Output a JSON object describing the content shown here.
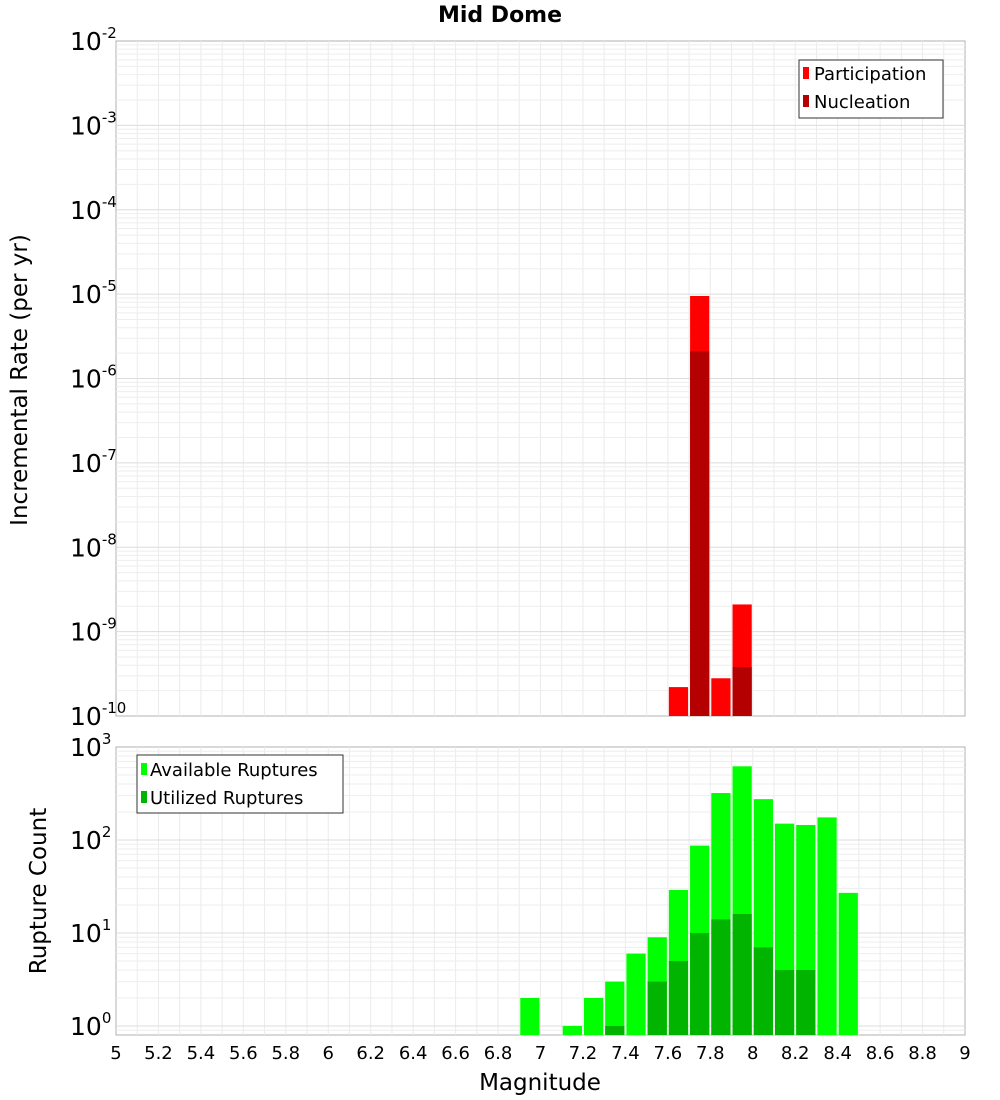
{
  "title": "Mid Dome",
  "chart_data": [
    {
      "type": "bar",
      "scale": "log",
      "ylabel": "Incremental Rate (per yr)",
      "xlabel": "",
      "xlim": [
        5,
        9
      ],
      "ylim": [
        1e-10,
        0.01
      ],
      "yticks": [
        {
          "base": "10",
          "exp": "-2",
          "value": 0.01
        },
        {
          "base": "10",
          "exp": "-3",
          "value": 0.001
        },
        {
          "base": "10",
          "exp": "-4",
          "value": 0.0001
        },
        {
          "base": "10",
          "exp": "-5",
          "value": 1e-05
        },
        {
          "base": "10",
          "exp": "-6",
          "value": 1e-06
        },
        {
          "base": "10",
          "exp": "-7",
          "value": 1e-07
        },
        {
          "base": "10",
          "exp": "-8",
          "value": 1e-08
        },
        {
          "base": "10",
          "exp": "-9",
          "value": 1e-09
        },
        {
          "base": "10",
          "exp": "-10",
          "value": 1e-10
        }
      ],
      "legend_position": "top-right",
      "bin_width": 0.1,
      "series": [
        {
          "name": "Participation",
          "color": "#ff0000",
          "points": [
            [
              7.65,
              2.2e-10
            ],
            [
              7.75,
              9.5e-06
            ],
            [
              7.85,
              2.8e-10
            ],
            [
              7.95,
              2.1e-09
            ]
          ]
        },
        {
          "name": "Nucleation",
          "color": "#b40000",
          "points": [
            [
              7.75,
              2.1e-06
            ],
            [
              7.95,
              3.8e-10
            ]
          ]
        }
      ]
    },
    {
      "type": "bar",
      "scale": "log",
      "ylabel": "Rupture Count",
      "xlabel": "Magnitude",
      "xlim": [
        5,
        9
      ],
      "ylim": [
        0.8,
        1000
      ],
      "yticks": [
        {
          "base": "10",
          "exp": "3",
          "value": 1000
        },
        {
          "base": "10",
          "exp": "2",
          "value": 100
        },
        {
          "base": "10",
          "exp": "1",
          "value": 10
        },
        {
          "base": "10",
          "exp": "0",
          "value": 1
        }
      ],
      "xticks": [
        "5",
        "5.2",
        "5.4",
        "5.6",
        "5.8",
        "6",
        "6.2",
        "6.4",
        "6.6",
        "6.8",
        "7",
        "7.2",
        "7.4",
        "7.6",
        "7.8",
        "8",
        "8.2",
        "8.4",
        "8.6",
        "8.8",
        "9"
      ],
      "legend_position": "top-left",
      "bin_width": 0.1,
      "series": [
        {
          "name": "Available Ruptures",
          "color": "#00ff00",
          "points": [
            [
              6.95,
              2
            ],
            [
              7.15,
              1
            ],
            [
              7.25,
              2
            ],
            [
              7.35,
              3
            ],
            [
              7.45,
              6
            ],
            [
              7.55,
              9
            ],
            [
              7.65,
              29
            ],
            [
              7.75,
              87
            ],
            [
              7.85,
              320
            ],
            [
              7.95,
              620
            ],
            [
              8.05,
              275
            ],
            [
              8.15,
              150
            ],
            [
              8.25,
              145
            ],
            [
              8.35,
              175
            ],
            [
              8.45,
              27
            ]
          ]
        },
        {
          "name": "Utilized Ruptures",
          "color": "#00b400",
          "points": [
            [
              7.35,
              1
            ],
            [
              7.55,
              3
            ],
            [
              7.65,
              5
            ],
            [
              7.75,
              10
            ],
            [
              7.85,
              14
            ],
            [
              7.95,
              16
            ],
            [
              8.05,
              7
            ],
            [
              8.15,
              4
            ],
            [
              8.25,
              4
            ]
          ]
        }
      ]
    }
  ]
}
